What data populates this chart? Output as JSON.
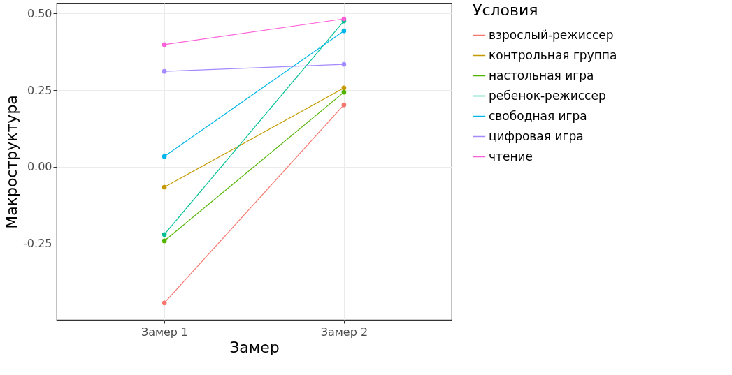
{
  "chart_data": {
    "type": "line",
    "xlabel": "Замер",
    "ylabel": "Макроструктура",
    "legend_title": "Условия",
    "categories": [
      "Замер 1",
      "Замер 2"
    ],
    "ylim": [
      -0.498,
      0.532
    ],
    "yticks": [
      {
        "value": -0.25,
        "label": "-0.25"
      },
      {
        "value": 0,
        "label": "0.00"
      },
      {
        "value": 0.25,
        "label": "0.25"
      },
      {
        "value": 0.5,
        "label": "0.50"
      }
    ],
    "grid": true,
    "legend": "right",
    "marker": "circle",
    "line_style": "solid",
    "series": [
      {
        "name": "взрослый-режиссер",
        "color": "#f8766d",
        "values": [
          -0.443,
          0.202
        ]
      },
      {
        "name": "контрольная группа",
        "color": "#c49a00",
        "values": [
          -0.066,
          0.257
        ]
      },
      {
        "name": "настольная игра",
        "color": "#53b400",
        "values": [
          -0.241,
          0.243
        ]
      },
      {
        "name": "ребенок-режиссер",
        "color": "#00c094",
        "values": [
          -0.22,
          0.475
        ]
      },
      {
        "name": "свободная игра",
        "color": "#00b6eb",
        "values": [
          0.034,
          0.443
        ]
      },
      {
        "name": "цифровая игра",
        "color": "#a58aff",
        "values": [
          0.311,
          0.334
        ]
      },
      {
        "name": "чтение",
        "color": "#fb61d7",
        "values": [
          0.398,
          0.482
        ]
      }
    ]
  }
}
